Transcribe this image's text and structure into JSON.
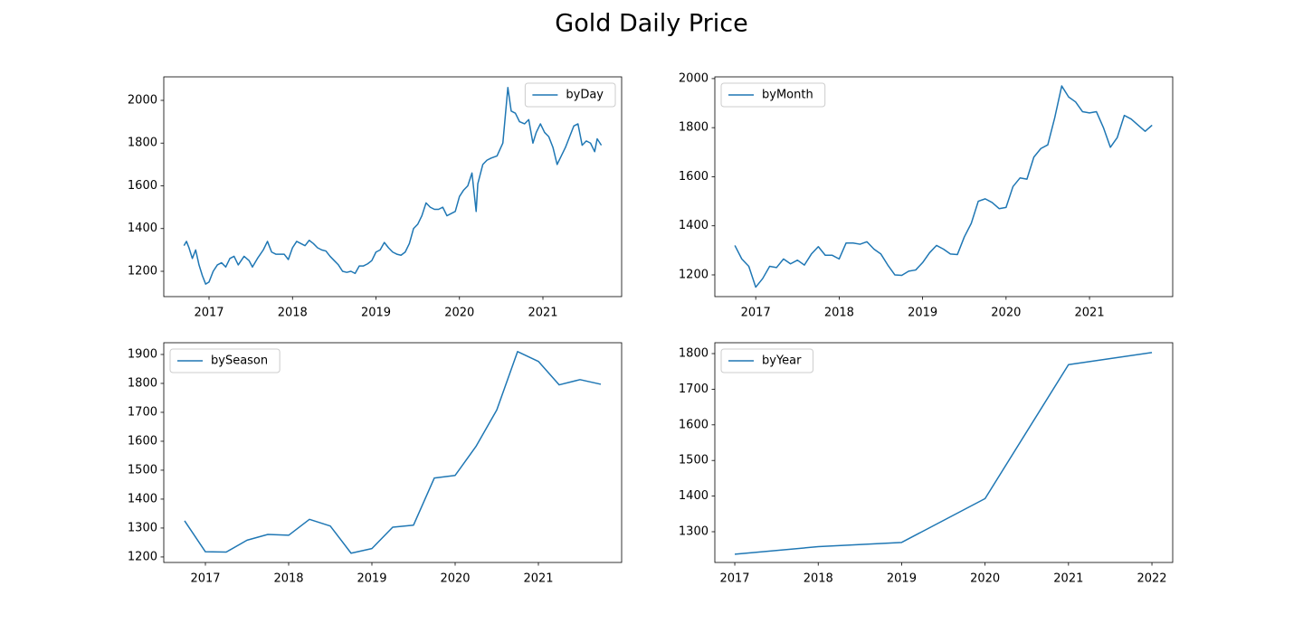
{
  "title": "Gold Daily Price",
  "chart_data": [
    {
      "type": "line",
      "x": [
        2016.7,
        2016.73,
        2016.76,
        2016.8,
        2016.84,
        2016.88,
        2016.92,
        2016.96,
        2017.0,
        2017.05,
        2017.1,
        2017.15,
        2017.2,
        2017.25,
        2017.3,
        2017.35,
        2017.42,
        2017.48,
        2017.52,
        2017.58,
        2017.65,
        2017.7,
        2017.75,
        2017.8,
        2017.9,
        2017.95,
        2018.0,
        2018.05,
        2018.1,
        2018.15,
        2018.2,
        2018.25,
        2018.3,
        2018.35,
        2018.4,
        2018.45,
        2018.5,
        2018.55,
        2018.6,
        2018.65,
        2018.7,
        2018.75,
        2018.8,
        2018.85,
        2018.9,
        2018.95,
        2019.0,
        2019.05,
        2019.1,
        2019.15,
        2019.2,
        2019.25,
        2019.3,
        2019.35,
        2019.4,
        2019.45,
        2019.5,
        2019.55,
        2019.6,
        2019.65,
        2019.7,
        2019.75,
        2019.8,
        2019.85,
        2019.9,
        2019.95,
        2020.0,
        2020.05,
        2020.1,
        2020.15,
        2020.2,
        2020.22,
        2020.28,
        2020.33,
        2020.38,
        2020.45,
        2020.52,
        2020.58,
        2020.62,
        2020.67,
        2020.72,
        2020.78,
        2020.83,
        2020.88,
        2020.92,
        2020.97,
        2021.02,
        2021.07,
        2021.12,
        2021.17,
        2021.22,
        2021.27,
        2021.32,
        2021.37,
        2021.42,
        2021.47,
        2021.52,
        2021.57,
        2021.62,
        2021.65,
        2021.7
      ],
      "series": [
        {
          "name": "byDay",
          "color": "#1f77b4",
          "values": [
            1320,
            1340,
            1310,
            1260,
            1300,
            1230,
            1180,
            1140,
            1150,
            1200,
            1230,
            1240,
            1220,
            1260,
            1270,
            1230,
            1270,
            1250,
            1220,
            1260,
            1300,
            1340,
            1290,
            1280,
            1280,
            1255,
            1310,
            1340,
            1330,
            1320,
            1345,
            1330,
            1310,
            1300,
            1295,
            1270,
            1250,
            1230,
            1200,
            1195,
            1200,
            1190,
            1225,
            1225,
            1235,
            1250,
            1290,
            1300,
            1335,
            1310,
            1290,
            1280,
            1275,
            1290,
            1330,
            1400,
            1420,
            1460,
            1520,
            1500,
            1490,
            1490,
            1500,
            1460,
            1470,
            1480,
            1550,
            1580,
            1600,
            1660,
            1480,
            1610,
            1700,
            1720,
            1730,
            1740,
            1800,
            2060,
            1950,
            1940,
            1900,
            1890,
            1910,
            1800,
            1850,
            1890,
            1850,
            1830,
            1780,
            1700,
            1740,
            1780,
            1830,
            1880,
            1890,
            1790,
            1810,
            1800,
            1760,
            1820,
            1790
          ]
        }
      ],
      "xlim": [
        2016.458,
        2021.943
      ],
      "ylim": [
        1081.5,
        2110
      ],
      "xticks": [
        2017,
        2018,
        2019,
        2020,
        2021
      ],
      "yticks": [
        1200,
        1400,
        1600,
        1800,
        2000
      ],
      "legend": "upper right"
    },
    {
      "type": "line",
      "x": [
        2016.75,
        2016.833,
        2016.917,
        2017.0,
        2017.083,
        2017.167,
        2017.25,
        2017.333,
        2017.417,
        2017.5,
        2017.583,
        2017.667,
        2017.75,
        2017.833,
        2017.917,
        2018.0,
        2018.083,
        2018.167,
        2018.25,
        2018.333,
        2018.417,
        2018.5,
        2018.583,
        2018.667,
        2018.75,
        2018.833,
        2018.917,
        2019.0,
        2019.083,
        2019.167,
        2019.25,
        2019.333,
        2019.417,
        2019.5,
        2019.583,
        2019.667,
        2019.75,
        2019.833,
        2019.917,
        2020.0,
        2020.083,
        2020.167,
        2020.25,
        2020.333,
        2020.417,
        2020.5,
        2020.583,
        2020.667,
        2020.75,
        2020.833,
        2020.917,
        2021.0,
        2021.083,
        2021.167,
        2021.25,
        2021.333,
        2021.417,
        2021.5,
        2021.583,
        2021.667,
        2021.75
      ],
      "series": [
        {
          "name": "byMonth",
          "color": "#1f77b4",
          "values": [
            1320,
            1265,
            1235,
            1150,
            1185,
            1235,
            1230,
            1265,
            1245,
            1260,
            1240,
            1285,
            1315,
            1280,
            1280,
            1265,
            1330,
            1330,
            1325,
            1335,
            1305,
            1285,
            1240,
            1200,
            1198,
            1215,
            1220,
            1250,
            1290,
            1320,
            1305,
            1285,
            1283,
            1355,
            1410,
            1500,
            1510,
            1495,
            1470,
            1475,
            1560,
            1595,
            1590,
            1680,
            1715,
            1730,
            1840,
            1970,
            1925,
            1905,
            1865,
            1860,
            1865,
            1800,
            1720,
            1760,
            1850,
            1835,
            1810,
            1785,
            1810
          ]
        }
      ],
      "xlim": [
        2016.51,
        2021.997
      ],
      "ylim": [
        1111.5,
        2007
      ],
      "xticks": [
        2017,
        2018,
        2019,
        2020,
        2021
      ],
      "yticks": [
        1200,
        1400,
        1600,
        1800,
        2000
      ],
      "legend": "upper left"
    },
    {
      "type": "line",
      "x": [
        2016.75,
        2017.0,
        2017.25,
        2017.5,
        2017.75,
        2018.0,
        2018.25,
        2018.5,
        2018.75,
        2019.0,
        2019.25,
        2019.5,
        2019.75,
        2020.0,
        2020.25,
        2020.5,
        2020.75,
        2021.0,
        2021.25,
        2021.5,
        2021.75
      ],
      "series": [
        {
          "name": "bySeason",
          "color": "#1f77b4",
          "values": [
            1325,
            1218,
            1217,
            1258,
            1278,
            1275,
            1330,
            1307,
            1213,
            1229,
            1303,
            1310,
            1473,
            1482,
            1582,
            1708,
            1910,
            1876,
            1795,
            1813,
            1797
          ]
        }
      ],
      "xlim": [
        2016.5,
        2022.0
      ],
      "ylim": [
        1181,
        1940.6
      ],
      "xticks": [
        2017,
        2018,
        2019,
        2020,
        2021
      ],
      "yticks": [
        1200,
        1300,
        1400,
        1500,
        1600,
        1700,
        1800,
        1900
      ],
      "legend": "upper left"
    },
    {
      "type": "line",
      "x": [
        2017,
        2018,
        2019,
        2020,
        2021,
        2022
      ],
      "series": [
        {
          "name": "byYear",
          "color": "#1f77b4",
          "values": [
            1237,
            1258,
            1270,
            1393,
            1769,
            1803
          ]
        }
      ],
      "xlim": [
        2016.761,
        2022.249
      ],
      "ylim": [
        1213.7,
        1830.5
      ],
      "xticks": [
        2017,
        2018,
        2019,
        2020,
        2021,
        2022
      ],
      "yticks": [
        1300,
        1400,
        1500,
        1600,
        1700,
        1800
      ],
      "legend": "upper left"
    }
  ]
}
